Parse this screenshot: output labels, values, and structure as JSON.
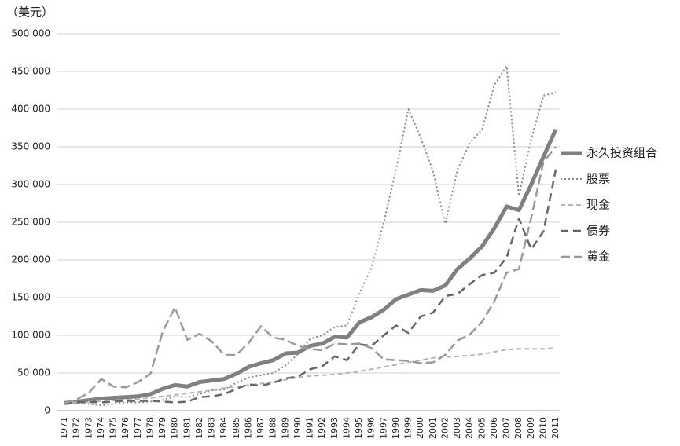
{
  "chart_data": {
    "type": "line",
    "y_label": "（美元）",
    "categories": [
      "1971",
      "1972",
      "1973",
      "1974",
      "1975",
      "1976",
      "1977",
      "1978",
      "1979",
      "1980",
      "1981",
      "1982",
      "1983",
      "1984",
      "1985",
      "1986",
      "1987",
      "1988",
      "1989",
      "1990",
      "1991",
      "1992",
      "1993",
      "1994",
      "1995",
      "1996",
      "1997",
      "1998",
      "1999",
      "2000",
      "2001",
      "2002",
      "2003",
      "2004",
      "2005",
      "2006",
      "2007",
      "2008",
      "2009",
      "2010",
      "2011"
    ],
    "ylim": [
      0,
      500000
    ],
    "yticks": [
      0,
      {
        "value": 50000,
        "label": "50 000"
      },
      {
        "value": 100000,
        "label": "100 000"
      },
      {
        "value": 150000,
        "label": "150 000"
      },
      {
        "value": 200000,
        "label": "200 000"
      },
      {
        "value": 250000,
        "label": "250 000"
      },
      {
        "value": 300000,
        "label": "300 000"
      },
      {
        "value": 350000,
        "label": "350 000"
      },
      {
        "value": 400000,
        "label": "400 000"
      },
      {
        "value": 450000,
        "label": "450 000"
      },
      {
        "value": 500000,
        "label": "500 000"
      }
    ],
    "grid": true,
    "legend": "right",
    "series": [
      {
        "name": "永久投资组合",
        "color": "#808080",
        "width": 5,
        "dash": "none",
        "values": [
          10000,
          12000,
          14000,
          16000,
          17000,
          18000,
          19000,
          22000,
          29000,
          34000,
          32000,
          38000,
          40000,
          42000,
          49000,
          58000,
          63000,
          67000,
          76000,
          77000,
          86000,
          89000,
          98000,
          97000,
          117000,
          124000,
          134000,
          148000,
          154000,
          160000,
          159000,
          166000,
          188000,
          202000,
          218000,
          242000,
          271000,
          266000,
          300000,
          337000,
          373000
        ]
      },
      {
        "name": "股票",
        "color": "#8a8a8a",
        "width": 2,
        "dash": "2 3",
        "values": [
          10000,
          12000,
          9000,
          7000,
          9000,
          11000,
          11000,
          12000,
          14000,
          19000,
          18000,
          22000,
          27000,
          28000,
          37000,
          44000,
          47000,
          50000,
          60000,
          75000,
          95000,
          100000,
          111000,
          113000,
          155000,
          190000,
          250000,
          320000,
          400000,
          362000,
          318000,
          248000,
          320000,
          355000,
          373000,
          432000,
          457000,
          285000,
          360000,
          418000,
          422000
        ]
      },
      {
        "name": "现金",
        "color": "#b5b5b5",
        "width": 2,
        "dash": "6 4",
        "values": [
          10000,
          11000,
          12000,
          12500,
          13500,
          14500,
          15500,
          17000,
          19000,
          21000,
          23000,
          25000,
          27000,
          30000,
          32000,
          34000,
          36000,
          38000,
          41000,
          44000,
          46000,
          47000,
          48000,
          50000,
          52000,
          55000,
          58000,
          61000,
          64000,
          67000,
          70000,
          71000,
          72000,
          73000,
          75000,
          78000,
          81000,
          82000,
          82000,
          82000,
          83000
        ]
      },
      {
        "name": "债券",
        "color": "#666666",
        "width": 2.5,
        "dash": "10 6",
        "values": [
          10000,
          11000,
          11500,
          11000,
          12000,
          13000,
          13000,
          13000,
          12000,
          11000,
          12000,
          18000,
          19000,
          22000,
          29000,
          35000,
          33000,
          37000,
          43000,
          45000,
          55000,
          59000,
          72000,
          67000,
          88000,
          86000,
          100000,
          113000,
          103000,
          125000,
          130000,
          152000,
          155000,
          168000,
          180000,
          183000,
          203000,
          255000,
          214000,
          238000,
          320000
        ]
      },
      {
        "name": "黄金",
        "color": "#9a9a9a",
        "width": 2.5,
        "dash": "12 5",
        "values": [
          10000,
          15000,
          24000,
          42000,
          32000,
          31000,
          38000,
          49000,
          105000,
          137000,
          94000,
          102000,
          92000,
          74000,
          74000,
          90000,
          112000,
          97000,
          94000,
          86000,
          82000,
          80000,
          89000,
          88000,
          89000,
          83000,
          68000,
          67000,
          66000,
          63000,
          64000,
          74000,
          93000,
          101000,
          118000,
          145000,
          183000,
          188000,
          256000,
          330000,
          350000
        ]
      }
    ]
  }
}
